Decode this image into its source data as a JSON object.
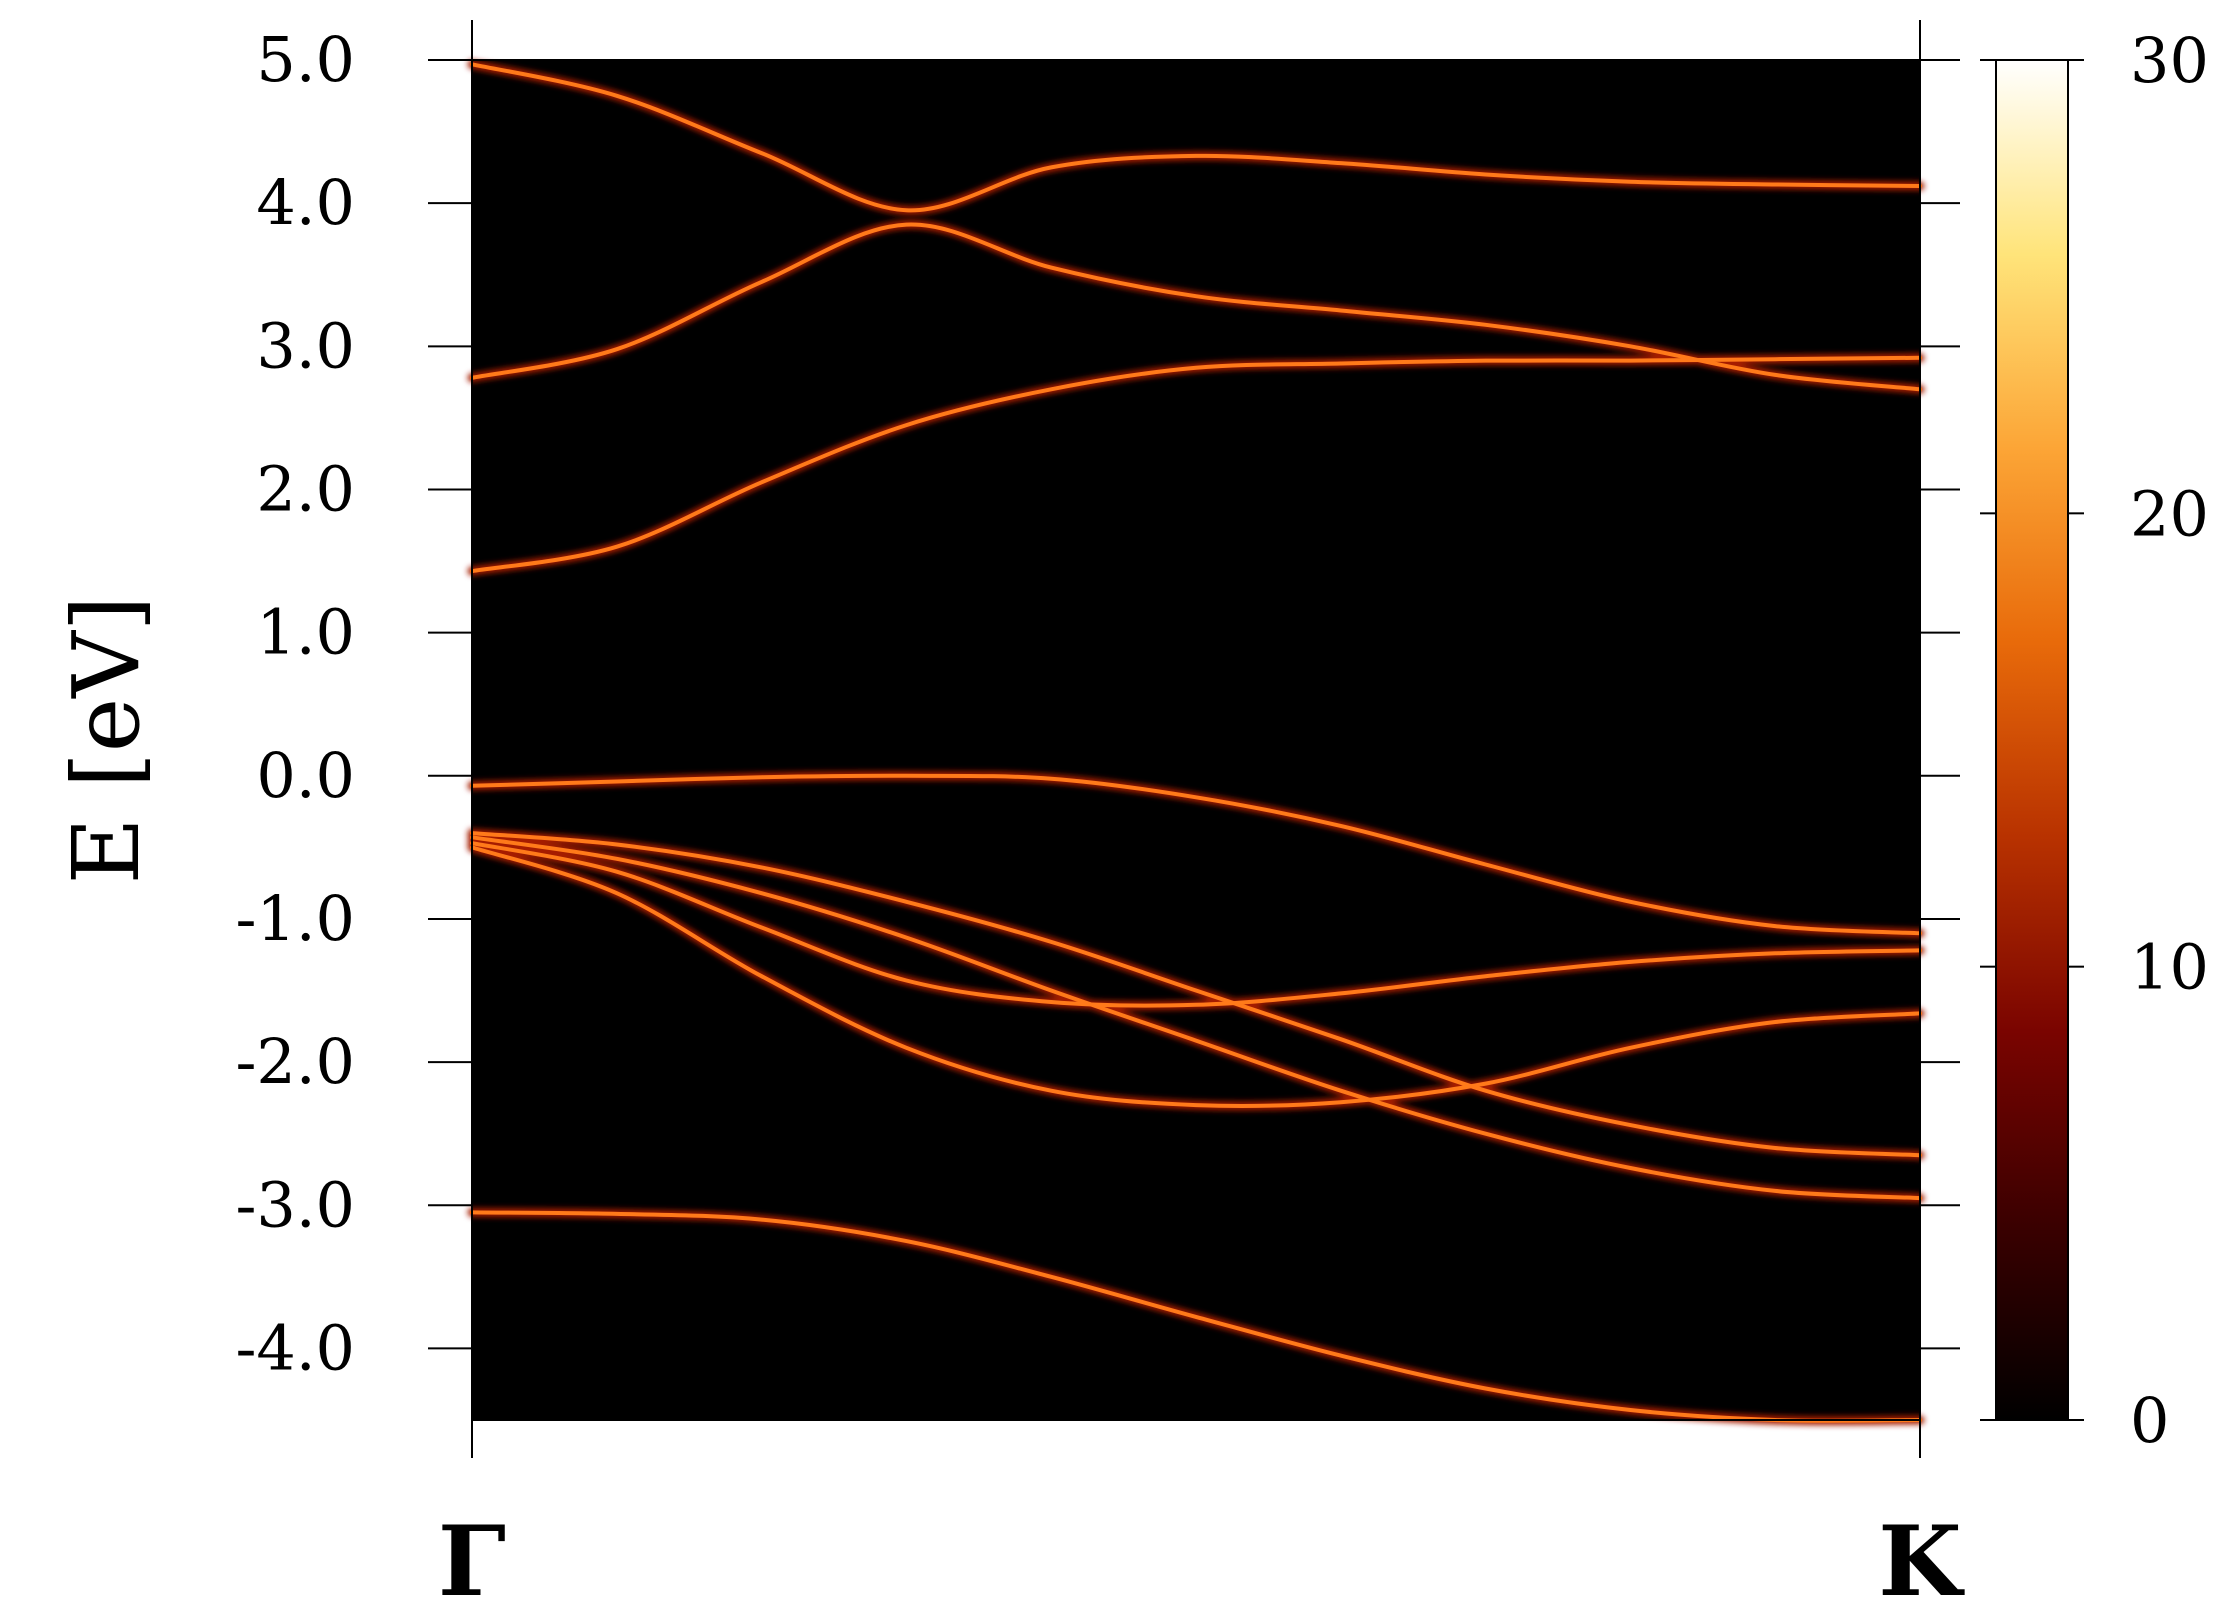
{
  "chart_data": {
    "type": "heatmap",
    "title": "",
    "ylabel": "E [eV]",
    "xlabel": "",
    "x_labels": [
      "Γ",
      "K"
    ],
    "ylim": [
      -4.5,
      5.0
    ],
    "y_ticks": [
      5.0,
      4.0,
      3.0,
      2.0,
      1.0,
      0.0,
      -1.0,
      -2.0,
      -3.0,
      -4.0
    ],
    "y_tick_labels": [
      "5.0",
      "4.0",
      "3.0",
      "2.0",
      "1.0",
      "0.0",
      "-1.0",
      "-2.0",
      "-3.0",
      "-4.0"
    ],
    "colorbar": {
      "range": [
        0,
        30
      ],
      "ticks": [
        0,
        10,
        20,
        30
      ],
      "tick_labels": [
        "0",
        "10",
        "20",
        "30"
      ],
      "colormap": [
        "#000000",
        "#3a0000",
        "#7a0400",
        "#b83200",
        "#e86a0a",
        "#fca536",
        "#ffe47a",
        "#ffffff"
      ]
    },
    "background": "#000000",
    "band_color": "#ff7a1a",
    "band_glow": "#a61e00",
    "series": [
      {
        "x": [
          0,
          0.1,
          0.2,
          0.3,
          0.4,
          0.5,
          0.6,
          0.7,
          0.8,
          0.9,
          1.0
        ],
        "y": [
          4.97,
          4.75,
          4.35,
          3.95,
          4.25,
          4.33,
          4.28,
          4.2,
          4.15,
          4.13,
          4.12
        ]
      },
      {
        "x": [
          0,
          0.1,
          0.2,
          0.3,
          0.4,
          0.5,
          0.6,
          0.7,
          0.8,
          0.9,
          1.0
        ],
        "y": [
          2.78,
          2.98,
          3.45,
          3.85,
          3.55,
          3.35,
          3.25,
          3.15,
          3.0,
          2.8,
          2.7
        ]
      },
      {
        "x": [
          0,
          0.1,
          0.2,
          0.3,
          0.4,
          0.5,
          0.6,
          0.7,
          0.8,
          0.9,
          1.0
        ],
        "y": [
          1.43,
          1.6,
          2.05,
          2.45,
          2.7,
          2.85,
          2.88,
          2.9,
          2.9,
          2.91,
          2.92
        ]
      },
      {
        "x": [
          0,
          0.1,
          0.2,
          0.3,
          0.4,
          0.5,
          0.6,
          0.7,
          0.8,
          0.9,
          1.0
        ],
        "y": [
          -0.07,
          -0.04,
          -0.01,
          0.0,
          -0.02,
          -0.15,
          -0.35,
          -0.62,
          -0.88,
          -1.05,
          -1.1
        ]
      },
      {
        "x": [
          0,
          0.1,
          0.2,
          0.3,
          0.4,
          0.5,
          0.6,
          0.7,
          0.8,
          0.9,
          1.0
        ],
        "y": [
          -0.4,
          -0.48,
          -0.64,
          -0.88,
          -1.16,
          -1.5,
          -1.84,
          -2.2,
          -2.44,
          -2.6,
          -2.65
        ]
      },
      {
        "x": [
          0,
          0.1,
          0.2,
          0.3,
          0.4,
          0.5,
          0.6,
          0.7,
          0.8,
          0.9,
          1.0
        ],
        "y": [
          -0.43,
          -0.58,
          -0.82,
          -1.13,
          -1.5,
          -1.85,
          -2.2,
          -2.5,
          -2.74,
          -2.9,
          -2.95
        ]
      },
      {
        "x": [
          0,
          0.1,
          0.2,
          0.3,
          0.4,
          0.5,
          0.6,
          0.7,
          0.8,
          0.9,
          1.0
        ],
        "y": [
          -0.47,
          -0.67,
          -1.06,
          -1.43,
          -1.58,
          -1.6,
          -1.52,
          -1.4,
          -1.3,
          -1.24,
          -1.22
        ]
      },
      {
        "x": [
          0,
          0.1,
          0.2,
          0.3,
          0.4,
          0.5,
          0.6,
          0.7,
          0.8,
          0.9,
          1.0
        ],
        "y": [
          -0.5,
          -0.82,
          -1.4,
          -1.9,
          -2.2,
          -2.3,
          -2.28,
          -2.15,
          -1.9,
          -1.72,
          -1.66
        ]
      },
      {
        "x": [
          0,
          0.1,
          0.2,
          0.3,
          0.4,
          0.5,
          0.6,
          0.7,
          0.8,
          0.9,
          1.0
        ],
        "y": [
          -3.05,
          -3.06,
          -3.1,
          -3.25,
          -3.5,
          -3.78,
          -4.05,
          -4.28,
          -4.43,
          -4.5,
          -4.5
        ]
      }
    ]
  }
}
